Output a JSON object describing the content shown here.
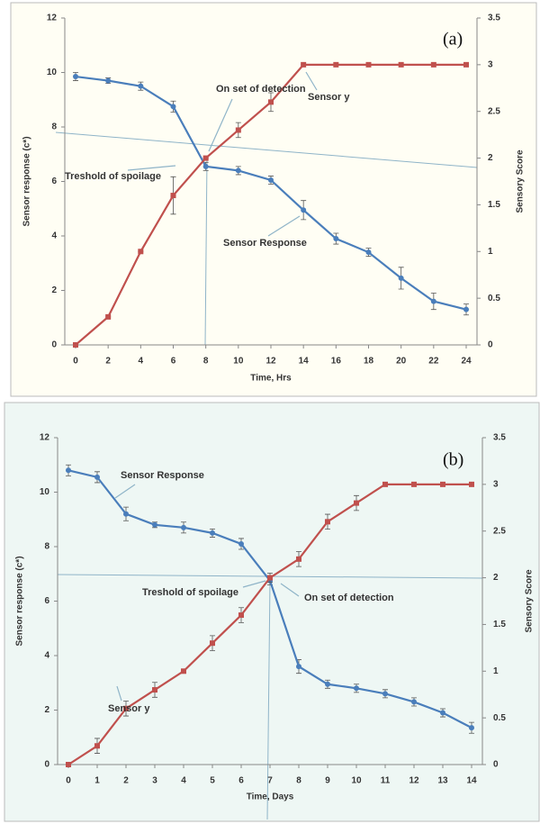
{
  "chart_data": [
    {
      "type": "line",
      "label": "(a)",
      "xlabel": "Time, Hrs",
      "ylabel": "Sensor response (c*)",
      "y2label": "Sensory Score",
      "x": [
        0,
        2,
        4,
        6,
        8,
        10,
        12,
        14,
        16,
        18,
        20,
        22,
        24
      ],
      "xlim": [
        0,
        24
      ],
      "xticks": [
        0,
        2,
        4,
        6,
        8,
        10,
        12,
        14,
        16,
        18,
        20,
        22,
        24
      ],
      "ylim": [
        0,
        12
      ],
      "yticks": [
        0,
        2,
        4,
        6,
        8,
        10,
        12
      ],
      "y2lim": [
        0,
        3.5
      ],
      "y2ticks": [
        0,
        0.5,
        1,
        1.5,
        2,
        2.5,
        3,
        3.5
      ],
      "annotations": [
        "On set of detection",
        "Treshold of spoilage"
      ],
      "series": [
        {
          "name": "Sensor Response",
          "color": "#4a7ebb",
          "marker": "circle",
          "values": [
            9.85,
            9.7,
            9.5,
            8.75,
            6.55,
            6.4,
            6.05,
            4.95,
            3.9,
            3.4,
            2.45,
            1.6,
            1.3
          ],
          "errors": [
            0.15,
            0.1,
            0.15,
            0.2,
            0.15,
            0.15,
            0.15,
            0.35,
            0.2,
            0.15,
            0.4,
            0.3,
            0.2
          ]
        },
        {
          "name": "Sensor y",
          "color": "#c0504d",
          "marker": "square",
          "axis": "y2",
          "values": [
            0,
            0.3,
            1,
            1.6,
            2,
            2.3,
            2.6,
            3,
            3,
            3,
            3,
            3,
            3
          ],
          "errors": [
            0,
            0,
            0,
            0.2,
            0,
            0.08,
            0.1,
            0,
            0,
            0,
            0,
            0,
            0
          ]
        }
      ]
    },
    {
      "type": "line",
      "label": "(b)",
      "xlabel": "Time, Days",
      "ylabel": "Sensor response (c*)",
      "y2label": "Sensory Score",
      "x": [
        0,
        1,
        2,
        3,
        4,
        5,
        6,
        7,
        8,
        9,
        10,
        11,
        12,
        13,
        14
      ],
      "xlim": [
        0,
        14
      ],
      "xticks": [
        0,
        1,
        2,
        3,
        4,
        5,
        6,
        7,
        8,
        9,
        10,
        11,
        12,
        13,
        14
      ],
      "ylim": [
        0,
        12
      ],
      "yticks": [
        0,
        2,
        4,
        6,
        8,
        10,
        12
      ],
      "y2lim": [
        0,
        3.5
      ],
      "y2ticks": [
        0,
        0.5,
        1,
        1.5,
        2,
        2.5,
        3,
        3.5
      ],
      "annotations": [
        "Treshold of spoilage",
        "On set of detection"
      ],
      "series": [
        {
          "name": "Sensor Response",
          "color": "#4a7ebb",
          "marker": "circle",
          "values": [
            10.8,
            10.55,
            9.2,
            8.8,
            8.7,
            8.5,
            8.1,
            6.75,
            3.6,
            2.95,
            2.8,
            2.6,
            2.3,
            1.9,
            1.35
          ],
          "errors": [
            0.2,
            0.2,
            0.25,
            0.1,
            0.2,
            0.15,
            0.2,
            0.15,
            0.25,
            0.15,
            0.15,
            0.15,
            0.15,
            0.15,
            0.2
          ]
        },
        {
          "name": "Sensor y",
          "color": "#c0504d",
          "marker": "square",
          "axis": "y2",
          "values": [
            0,
            0.2,
            0.6,
            0.8,
            1,
            1.3,
            1.6,
            2,
            2.2,
            2.6,
            2.8,
            3,
            3,
            3,
            3
          ],
          "errors": [
            0,
            0.08,
            0.08,
            0.08,
            0,
            0.08,
            0.08,
            0.05,
            0.08,
            0.08,
            0.08,
            0,
            0,
            0,
            0
          ]
        }
      ]
    }
  ]
}
